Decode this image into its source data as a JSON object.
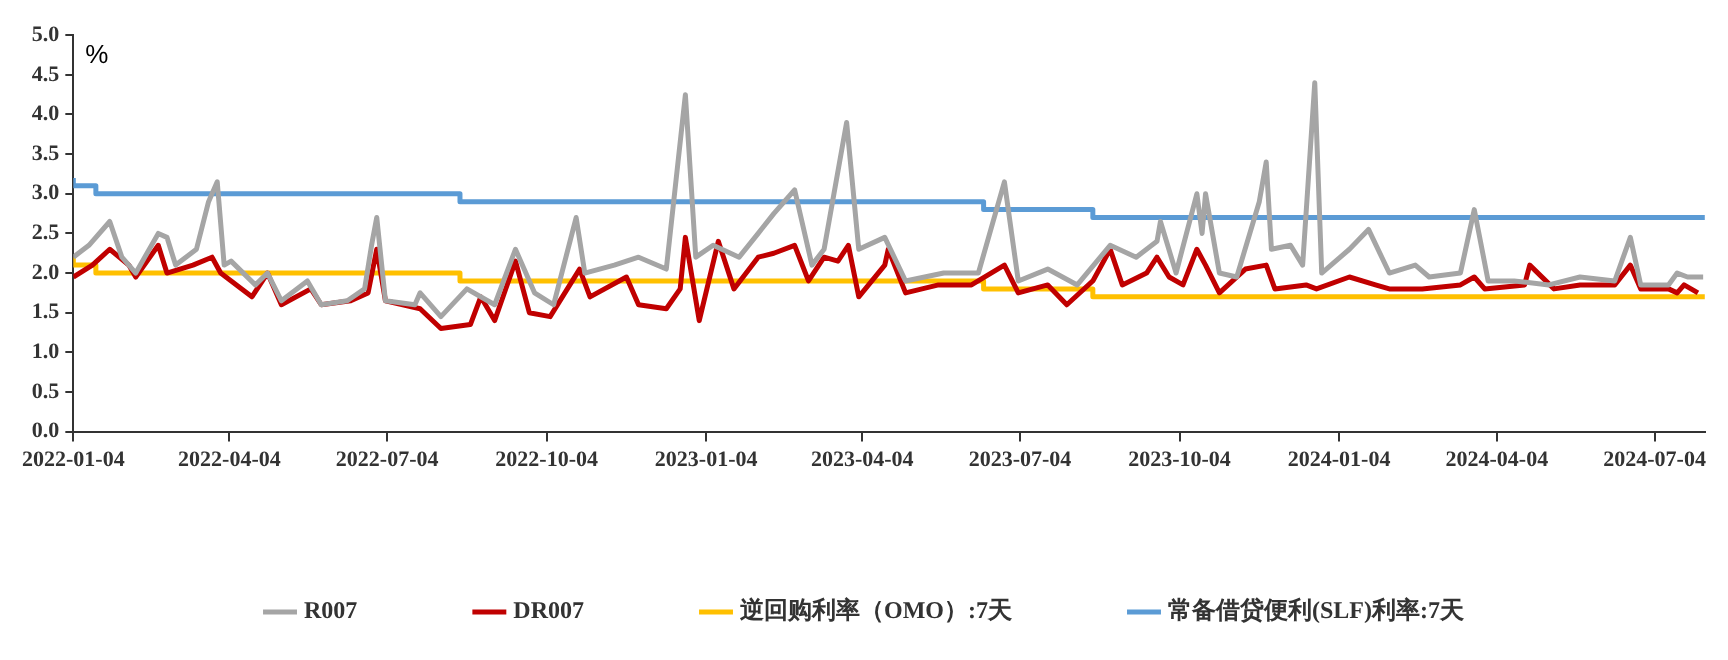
{
  "chart_data": {
    "type": "line",
    "ylabel": "%",
    "legend": "bottom",
    "grid": false,
    "marker": "none",
    "line_style": "solid",
    "xlim": [
      "2022-01-04",
      "2024-08-02"
    ],
    "xticks": [
      "2022-01-04",
      "2022-04-04",
      "2022-07-04",
      "2022-10-04",
      "2023-01-04",
      "2023-04-04",
      "2023-07-04",
      "2023-10-04",
      "2024-01-04",
      "2024-04-04",
      "2024-07-04"
    ],
    "ylim": [
      0,
      5
    ],
    "yticks": [
      {
        "value": 0,
        "label": "0.0"
      },
      {
        "value": 0.5,
        "label": "0.5"
      },
      {
        "value": 1,
        "label": "1.0"
      },
      {
        "value": 1.5,
        "label": "1.5"
      },
      {
        "value": 2,
        "label": "2.0"
      },
      {
        "value": 2.5,
        "label": "2.5"
      },
      {
        "value": 3,
        "label": "3.0"
      },
      {
        "value": 3.5,
        "label": "3.5"
      },
      {
        "value": 4,
        "label": "4.0"
      },
      {
        "value": 4.5,
        "label": "4.5"
      },
      {
        "value": 5,
        "label": "5.0"
      }
    ],
    "series": [
      {
        "name": "R007",
        "type": "line",
        "color": "#a5a5a5",
        "x": [
          "2022-01-04",
          "2022-01-13",
          "2022-01-25",
          "2022-02-01",
          "2022-02-09",
          "2022-02-22",
          "2022-02-27",
          "2022-03-04",
          "2022-03-16",
          "2022-03-23",
          "2022-03-28",
          "2022-04-01",
          "2022-04-05",
          "2022-04-19",
          "2022-04-26",
          "2022-05-04",
          "2022-05-19",
          "2022-05-27",
          "2022-06-11",
          "2022-06-21",
          "2022-06-25",
          "2022-06-28",
          "2022-07-03",
          "2022-07-20",
          "2022-07-23",
          "2022-08-04",
          "2022-08-19",
          "2022-09-04",
          "2022-09-16",
          "2022-09-27",
          "2022-10-08",
          "2022-10-21",
          "2022-10-26",
          "2022-11-12",
          "2022-11-26",
          "2022-12-12",
          "2022-12-23",
          "2022-12-29",
          "2023-01-08",
          "2023-01-23",
          "2023-02-03",
          "2023-02-12",
          "2023-02-24",
          "2023-03-06",
          "2023-03-13",
          "2023-03-26",
          "2023-04-02",
          "2023-04-17",
          "2023-04-29",
          "2023-05-21",
          "2023-06-10",
          "2023-06-25",
          "2023-07-03",
          "2023-07-20",
          "2023-08-06",
          "2023-08-25",
          "2023-09-09",
          "2023-09-21",
          "2023-09-23",
          "2023-10-02",
          "2023-10-14",
          "2023-10-17",
          "2023-10-19",
          "2023-10-27",
          "2023-11-06",
          "2023-11-19",
          "2023-11-23",
          "2023-11-26",
          "2023-12-07",
          "2023-12-14",
          "2023-12-21",
          "2023-12-25",
          "2024-01-10",
          "2024-01-21",
          "2024-02-02",
          "2024-02-17",
          "2024-02-25",
          "2024-03-14",
          "2024-03-22",
          "2024-03-30",
          "2024-04-14",
          "2024-05-04",
          "2024-05-22",
          "2024-06-11",
          "2024-06-20",
          "2024-06-26",
          "2024-07-12",
          "2024-07-17",
          "2024-07-23",
          "2024-08-01"
        ],
        "values": [
          2.2,
          2.35,
          2.65,
          2.2,
          2.0,
          2.5,
          2.45,
          2.1,
          2.3,
          2.9,
          3.15,
          2.1,
          2.15,
          1.85,
          2.0,
          1.65,
          1.9,
          1.6,
          1.65,
          1.8,
          2.35,
          2.7,
          1.65,
          1.6,
          1.75,
          1.45,
          1.8,
          1.6,
          2.3,
          1.75,
          1.6,
          2.7,
          2.0,
          2.1,
          2.2,
          2.05,
          4.25,
          2.2,
          2.35,
          2.2,
          2.5,
          2.75,
          3.05,
          2.1,
          2.3,
          3.9,
          2.3,
          2.45,
          1.9,
          2.0,
          2.0,
          3.15,
          1.9,
          2.05,
          1.85,
          2.35,
          2.2,
          2.4,
          2.65,
          2.0,
          3.0,
          2.5,
          3.0,
          2.0,
          1.95,
          2.9,
          3.4,
          2.3,
          2.35,
          2.1,
          4.4,
          2.0,
          2.3,
          2.55,
          2.0,
          2.1,
          1.95,
          2.0,
          2.8,
          1.9,
          1.9,
          1.85,
          1.95,
          1.9,
          2.45,
          1.85,
          1.85,
          2.0,
          1.95,
          1.95
        ]
      },
      {
        "name": "DR007",
        "type": "line",
        "color": "#c00000",
        "x": [
          "2022-01-04",
          "2022-01-15",
          "2022-01-25",
          "2022-02-05",
          "2022-02-09",
          "2022-02-22",
          "2022-02-27",
          "2022-03-14",
          "2022-03-25",
          "2022-03-30",
          "2022-04-02",
          "2022-04-17",
          "2022-04-26",
          "2022-05-04",
          "2022-05-21",
          "2022-05-27",
          "2022-06-13",
          "2022-06-23",
          "2022-06-28",
          "2022-07-03",
          "2022-07-23",
          "2022-08-04",
          "2022-08-21",
          "2022-08-27",
          "2022-09-04",
          "2022-09-16",
          "2022-09-24",
          "2022-10-06",
          "2022-10-23",
          "2022-10-29",
          "2022-11-19",
          "2022-11-26",
          "2022-12-12",
          "2022-12-20",
          "2022-12-23",
          "2022-12-31",
          "2023-01-11",
          "2023-01-20",
          "2023-02-03",
          "2023-02-12",
          "2023-02-24",
          "2023-03-04",
          "2023-03-13",
          "2023-03-21",
          "2023-03-27",
          "2023-04-02",
          "2023-04-17",
          "2023-04-19",
          "2023-04-29",
          "2023-05-18",
          "2023-06-06",
          "2023-06-25",
          "2023-07-03",
          "2023-07-20",
          "2023-07-31",
          "2023-08-15",
          "2023-08-25",
          "2023-09-01",
          "2023-09-15",
          "2023-09-21",
          "2023-09-28",
          "2023-10-06",
          "2023-10-14",
          "2023-10-19",
          "2023-10-27",
          "2023-11-11",
          "2023-11-23",
          "2023-11-28",
          "2023-12-16",
          "2023-12-22",
          "2024-01-10",
          "2024-01-25",
          "2024-02-02",
          "2024-02-21",
          "2024-03-14",
          "2024-03-22",
          "2024-03-28",
          "2024-04-20",
          "2024-04-23",
          "2024-05-07",
          "2024-05-22",
          "2024-06-11",
          "2024-06-20",
          "2024-06-26",
          "2024-07-12",
          "2024-07-17",
          "2024-07-21",
          "2024-07-29"
        ],
        "values": [
          1.95,
          2.1,
          2.3,
          2.1,
          1.95,
          2.35,
          2.0,
          2.1,
          2.2,
          2.0,
          1.95,
          1.7,
          2.0,
          1.6,
          1.8,
          1.6,
          1.65,
          1.75,
          2.3,
          1.65,
          1.55,
          1.3,
          1.35,
          1.7,
          1.4,
          2.15,
          1.5,
          1.45,
          2.05,
          1.7,
          1.95,
          1.6,
          1.55,
          1.8,
          2.45,
          1.4,
          2.4,
          1.8,
          2.2,
          2.25,
          2.35,
          1.9,
          2.2,
          2.15,
          2.35,
          1.7,
          2.1,
          2.3,
          1.75,
          1.85,
          1.85,
          2.1,
          1.75,
          1.85,
          1.6,
          1.9,
          2.3,
          1.85,
          2.0,
          2.2,
          1.95,
          1.85,
          2.3,
          2.1,
          1.75,
          2.05,
          2.1,
          1.8,
          1.85,
          1.8,
          1.95,
          1.85,
          1.8,
          1.8,
          1.85,
          1.95,
          1.8,
          1.85,
          2.1,
          1.8,
          1.85,
          1.85,
          2.1,
          1.8,
          1.8,
          1.75,
          1.85,
          1.75
        ]
      },
      {
        "name": "逆回购利率（OMO）:7天",
        "type": "step",
        "color": "#ffc000",
        "x": [
          "2022-01-04",
          "2022-01-17",
          "2022-08-15",
          "2023-06-13",
          "2023-08-15",
          "2024-07-22",
          "2024-08-02"
        ],
        "values": [
          2.2,
          2.1,
          2.0,
          1.9,
          1.8,
          1.7,
          1.7
        ]
      },
      {
        "name": "常备借贷便利(SLF)利率:7天",
        "type": "step",
        "color": "#5b9bd5",
        "x": [
          "2022-01-04",
          "2022-01-17",
          "2022-08-15",
          "2023-06-13",
          "2023-08-15",
          "2024-07-22",
          "2024-08-02"
        ],
        "values": [
          3.2,
          3.1,
          3.0,
          2.9,
          2.8,
          2.7,
          2.7
        ]
      }
    ]
  }
}
